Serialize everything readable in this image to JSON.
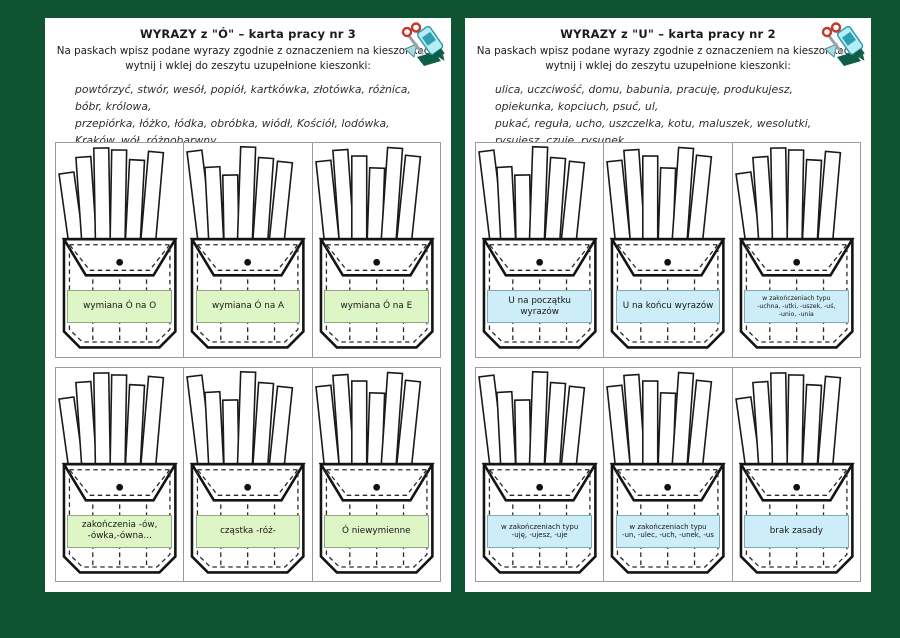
{
  "background_color": "#0e5433",
  "icons": {
    "cut_paste": "scissors-glue-icon"
  },
  "pages": [
    {
      "side": "left",
      "title": "WYRAZY z \"Ó\"  – karta pracy nr 3",
      "instructions": "Na paskach wpisz podane wyrazy zgodnie z oznaczeniem na kieszonkach,\nwytnij i wklej do zeszytu uzupełnione kieszonki:",
      "word_list": "powtórzyć, stwór, wesół, popiół, kartkówka, złotówka, różnica, bóbr, królowa,\nprzepiórka, łóżko, łódka, obróbka, wiódł, Kościół, lodówka, Kraków, wół, różnobarwny,\nporóżnić, zwrócić, pszczółka, stołówka, włókno, skóra, różowy, tchórz, wrócić,\nwróżbita, przeróbka",
      "label_bg": "#def5c6",
      "label_border": "#8fa97e",
      "pockets": [
        {
          "label": "wymiana Ó na O"
        },
        {
          "label": "wymiana Ó na A"
        },
        {
          "label": "wymiana Ó na E"
        },
        {
          "label": "zakończenia -ów,\n-ówka,-ówna..."
        },
        {
          "label": "cząstka -róż-"
        },
        {
          "label": "Ó niewymienne"
        }
      ]
    },
    {
      "side": "right",
      "title": "WYRAZY z \"U\" – karta pracy nr 2",
      "instructions": "Na paskach wpisz podane wyrazy zgodnie z oznaczeniem na kieszonkach,\nwytnij i wklej do zeszytu uzupełnione kieszonki:",
      "word_list": "ulica, uczciwość, domu, babunia, pracuję, produkujesz, opiekunka, kopciuch, psuć, ul,\npukać, reguła, ucho, uszczelka, kotu, maluszek, wesolutki, rysujesz, czuje, rysunek,\nhamulec, słoju, śruba, muzeum, pakunek, maluję, córuś, wnusio, krzesłu, stojaku",
      "label_bg": "#cdeef8",
      "label_border": "#7fa9b4",
      "pockets": [
        {
          "label": "U na początku wyrazów"
        },
        {
          "label": "U na końcu wyrazów"
        },
        {
          "label": "w zakończeniach typu\n-uchna, -utki, -uszek, -uś,\n-unio, -unia"
        },
        {
          "label": "w zakończeniach typu\n-uję, -ujesz, -uje"
        },
        {
          "label": "w zakończeniach typu\n-un, -ulec, -uch, -unek, -us"
        },
        {
          "label": "brak zasady"
        }
      ]
    }
  ]
}
